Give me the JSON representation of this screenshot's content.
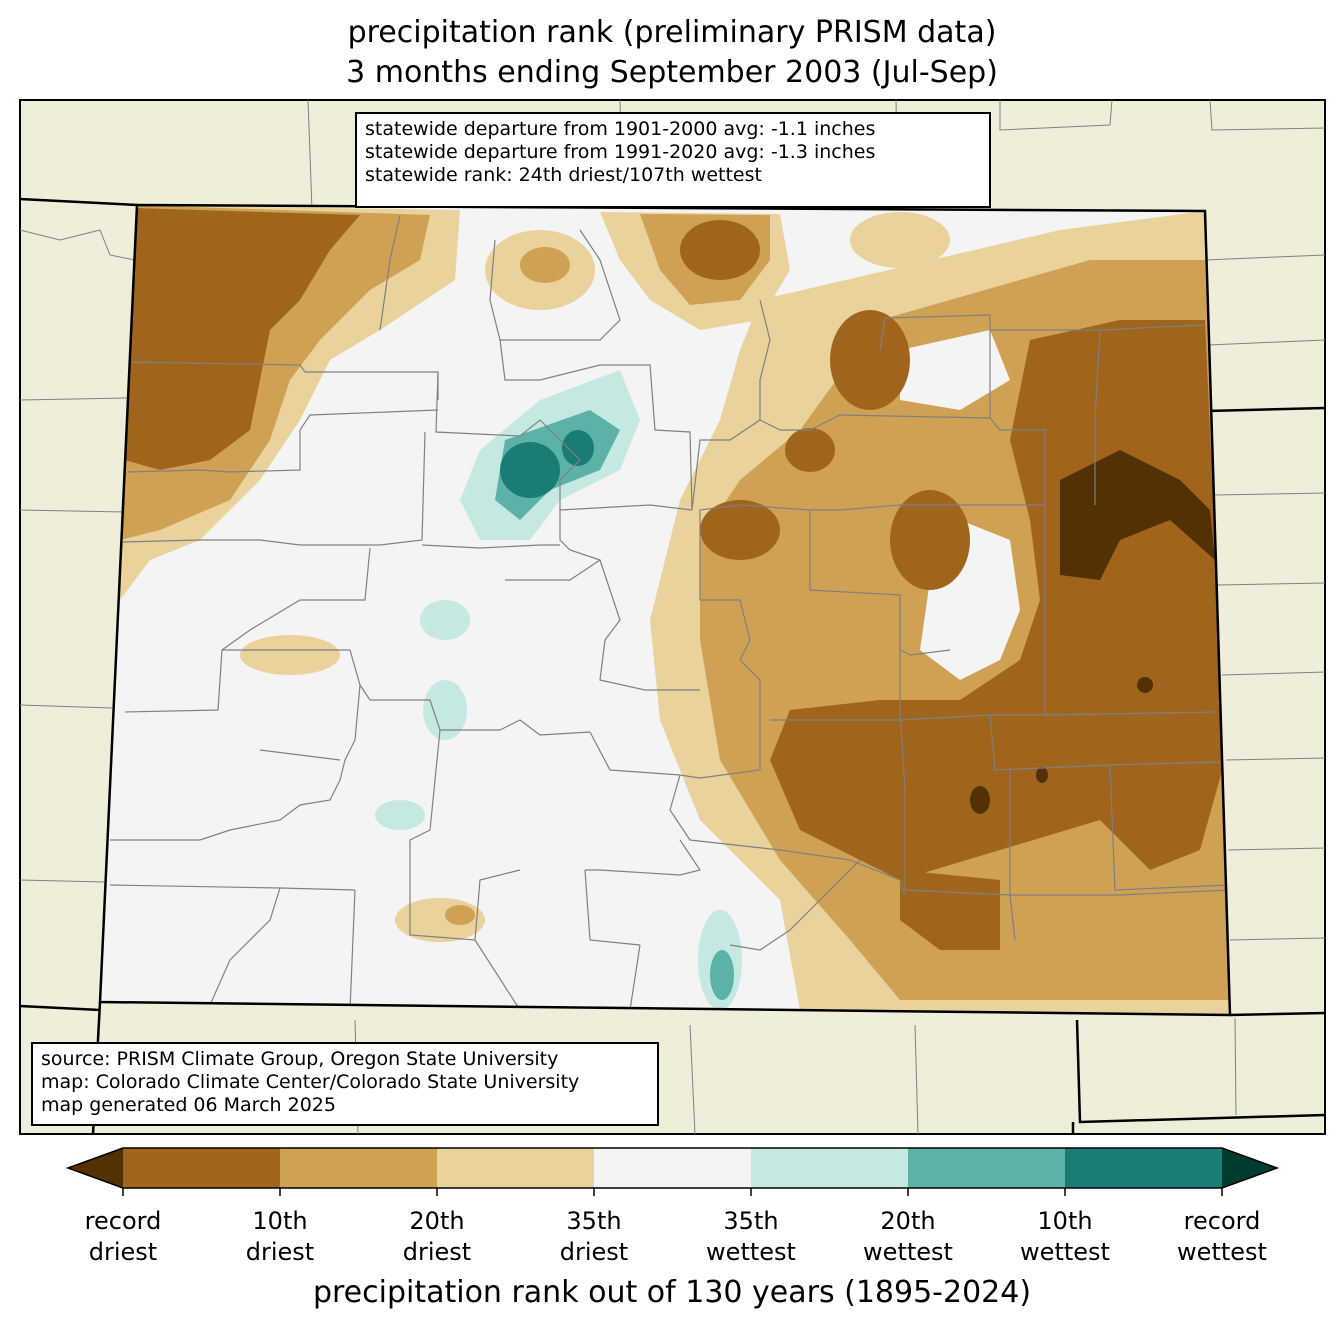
{
  "title": {
    "line1": "precipitation rank (preliminary PRISM data)",
    "line2": "3 months ending September 2003 (Jul-Sep)"
  },
  "stats_box": {
    "line1": "statewide departure from 1901-2000 avg: -1.1 inches",
    "line2": "statewide departure from 1991-2020 avg: -1.3 inches",
    "line3": "statewide rank: 24th driest/107th wettest"
  },
  "source_box": {
    "line1": "source: PRISM Climate Group, Oregon State University",
    "line2": "map: Colorado Climate Center/Colorado State University",
    "line3": "map generated 06 March 2025"
  },
  "colorbar": {
    "title": "precipitation rank out of 130 years (1895-2024)",
    "labels": [
      {
        "top": "record",
        "bottom": "driest"
      },
      {
        "top": "10th",
        "bottom": "driest"
      },
      {
        "top": "20th",
        "bottom": "driest"
      },
      {
        "top": "35th",
        "bottom": "driest"
      },
      {
        "top": "35th",
        "bottom": "wettest"
      },
      {
        "top": "20th",
        "bottom": "wettest"
      },
      {
        "top": "10th",
        "bottom": "wettest"
      },
      {
        "top": "record",
        "bottom": "wettest"
      }
    ],
    "colors": [
      "#543005",
      "#a0641c",
      "#cfa154",
      "#e9d29c",
      "#f4f4f4",
      "#c5e9e2",
      "#5db2a7",
      "#1a7c72",
      "#003c30"
    ]
  },
  "colors": {
    "land_outside": "#efeedb",
    "border": "#000000",
    "county_lines": "#808080"
  }
}
